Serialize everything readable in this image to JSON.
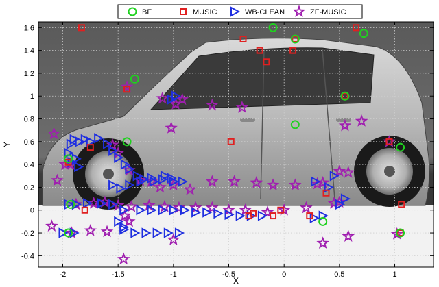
{
  "chart_data": {
    "type": "scatter",
    "title": "",
    "xlabel": "X",
    "ylabel": "Y",
    "xlim": [
      -2.22,
      1.35
    ],
    "ylim": [
      -0.5,
      1.65
    ],
    "x_ticks": [
      -2,
      -1.5,
      -1,
      -0.5,
      0,
      0.5,
      1
    ],
    "y_ticks": [
      -0.4,
      -0.2,
      0,
      0.2,
      0.4,
      0.6,
      0.8,
      1,
      1.2,
      1.4,
      1.6
    ],
    "x_tick_labels": [
      "-2",
      "-1.5",
      "-1",
      "-0.5",
      "0",
      "0.5",
      "1"
    ],
    "y_tick_labels": [
      "-0.4",
      "-0.2",
      "0",
      "0.2",
      "0.4",
      "0.6",
      "0.8",
      "1",
      "1.2",
      "1.4",
      "1.6"
    ],
    "grid": true,
    "legend_position": "top-center-outside",
    "background": "photograph of a grey hatchback car, side view, facing left",
    "series": [
      {
        "name": "BF",
        "marker": "circle",
        "color": "#1fd11f",
        "x": [
          -1.35,
          -0.1,
          0.72,
          0.1,
          -1.42,
          0.55,
          -1.95,
          -1.93,
          0.1,
          1.05,
          1.05,
          -1.95,
          0.35
        ],
        "y": [
          1.15,
          1.6,
          1.55,
          1.5,
          0.6,
          1.0,
          0.45,
          0.05,
          0.75,
          0.55,
          -0.2,
          -0.2,
          -0.1
        ]
      },
      {
        "name": "MUSIC",
        "marker": "square",
        "color": "#e02020",
        "x": [
          -1.83,
          -0.37,
          -0.22,
          0.1,
          0.65,
          -0.16,
          0.08,
          -1.42,
          0.55,
          -0.48,
          -1.95,
          -1.75,
          -1.8,
          0.95,
          1.06,
          1.05,
          0.38,
          0.23,
          -0.03,
          -0.28,
          -0.32,
          -0.1
        ],
        "y": [
          1.6,
          1.5,
          1.4,
          1.5,
          1.6,
          1.3,
          1.4,
          1.06,
          1.0,
          0.6,
          0.42,
          0.55,
          0.0,
          0.6,
          0.05,
          -0.2,
          0.15,
          -0.05,
          0.0,
          -0.03,
          -0.05,
          -0.05
        ]
      },
      {
        "name": "WB-CLEAN",
        "marker": "triangle-right",
        "color": "#1f2fe0",
        "x": [
          -1.02,
          -0.98,
          -1.93,
          -1.85,
          -1.8,
          -1.75,
          -1.68,
          -1.6,
          -1.55,
          -1.5,
          -1.44,
          -1.4,
          -1.33,
          -1.27,
          -1.18,
          -1.08,
          -1.02,
          -0.92,
          -1.55,
          -1.48,
          -1.4,
          -1.3,
          -1.2,
          -1.1,
          -1.0,
          -1.95,
          -1.88,
          -1.78,
          -1.65,
          -1.55,
          -1.45,
          -1.3,
          -1.2,
          -1.1,
          -1.0,
          -0.9,
          -0.8,
          -0.7,
          -0.6,
          -0.5,
          -0.4,
          -0.3,
          -0.2,
          -2.0,
          -1.9,
          -1.45,
          -1.35,
          -1.25,
          -1.15,
          -1.05,
          -0.95,
          0.28,
          0.4,
          0.5,
          0.55,
          0.35,
          0.27,
          0.45,
          -1.88,
          -1.95,
          -1.92,
          -1.86,
          -1.9,
          -1.45,
          -1.5
        ],
        "y": [
          0.97,
          1.0,
          0.58,
          0.6,
          0.62,
          0.6,
          0.63,
          0.58,
          0.52,
          0.46,
          0.4,
          0.36,
          0.3,
          0.27,
          0.25,
          0.3,
          0.28,
          0.25,
          0.22,
          0.19,
          0.22,
          0.25,
          0.28,
          0.27,
          0.25,
          0.05,
          0.05,
          0.06,
          0.06,
          0.05,
          0.0,
          0.0,
          0.0,
          0.0,
          0.0,
          0.0,
          -0.02,
          -0.02,
          -0.03,
          -0.04,
          -0.05,
          -0.05,
          -0.05,
          -0.2,
          -0.2,
          -0.17,
          -0.2,
          -0.2,
          -0.2,
          -0.2,
          -0.2,
          0.25,
          0.2,
          0.05,
          0.1,
          -0.05,
          -0.07,
          0.3,
          0.45,
          0.5,
          0.42,
          0.38,
          0.62,
          -0.15,
          -0.1
        ]
      },
      {
        "name": "ZF-MUSIC",
        "marker": "star",
        "color": "#a01fb0",
        "x": [
          -2.08,
          -1.93,
          -1.42,
          -1.02,
          -0.98,
          -1.1,
          -0.65,
          -0.38,
          -0.92,
          0.55,
          0.7,
          0.95,
          -1.55,
          -1.98,
          -2.05,
          -1.5,
          -1.4,
          -1.3,
          -1.2,
          -1.12,
          -1.0,
          -0.85,
          -0.65,
          -0.45,
          -0.25,
          -0.1,
          0.1,
          0.3,
          0.5,
          0.58,
          0.35,
          -1.88,
          -1.72,
          -1.62,
          -1.5,
          -1.38,
          -1.22,
          -1.08,
          -0.95,
          -0.8,
          -0.65,
          -0.5,
          -0.35,
          -0.15,
          0.0,
          0.2,
          0.45,
          0.5,
          -2.1,
          -1.92,
          -1.75,
          -1.6,
          -1.44,
          -1.4,
          -1.0,
          0.35,
          0.58,
          1.02,
          -1.45
        ],
        "y": [
          0.67,
          0.4,
          1.08,
          0.72,
          0.93,
          0.98,
          0.92,
          0.9,
          0.97,
          0.74,
          0.78,
          0.6,
          0.57,
          0.4,
          0.26,
          0.5,
          0.35,
          0.26,
          0.25,
          0.2,
          0.22,
          0.18,
          0.25,
          0.25,
          0.24,
          0.22,
          0.22,
          0.23,
          0.34,
          0.33,
          0.24,
          0.05,
          0.06,
          0.07,
          0.04,
          0.03,
          0.04,
          0.03,
          0.02,
          0.02,
          0.02,
          0.0,
          0.0,
          -0.02,
          0.0,
          0.02,
          0.06,
          0.07,
          -0.14,
          -0.2,
          -0.18,
          -0.19,
          -0.05,
          -0.1,
          -0.26,
          -0.29,
          -0.23,
          -0.21,
          -0.43
        ]
      }
    ]
  }
}
